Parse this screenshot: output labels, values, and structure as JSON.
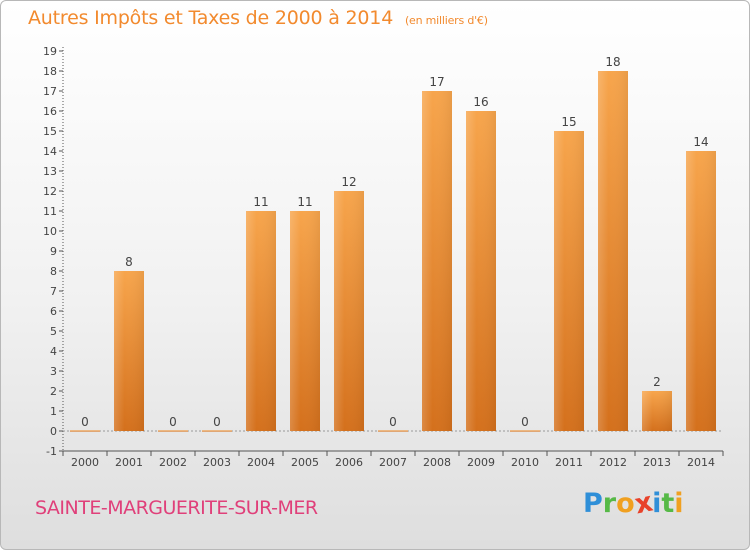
{
  "header": {
    "title": "Autres Impôts et Taxes de 2000 à 2014",
    "unit": "(en milliers d'€)"
  },
  "footer": {
    "commune": "SAINTE-MARGUERITE-SUR-MER",
    "logo_letters": [
      "P",
      "r",
      "o",
      "x",
      "i",
      "t",
      "i"
    ],
    "logo_colors": [
      "#2f8fd8",
      "#56b947",
      "#f0a020",
      "#e8422a",
      "#2f8fd8",
      "#56b947",
      "#f0a020"
    ]
  },
  "colors": {
    "bar_top": "#f7a54c",
    "bar_bottom": "#d4701c",
    "title": "#f28a2e",
    "commune": "#e0407a"
  },
  "chart_data": {
    "type": "bar",
    "title": "Autres Impôts et Taxes de 2000 à 2014",
    "subtitle": "(en milliers d'€)",
    "categories": [
      "2000",
      "2001",
      "2002",
      "2003",
      "2004",
      "2005",
      "2006",
      "2007",
      "2008",
      "2009",
      "2010",
      "2011",
      "2012",
      "2013",
      "2014"
    ],
    "values": [
      0,
      8,
      0,
      0,
      11,
      11,
      12,
      0,
      17,
      16,
      0,
      15,
      18,
      2,
      14
    ],
    "data_labels": [
      "0",
      "8",
      "0",
      "0",
      "11",
      "11",
      "12",
      "0",
      "17",
      "16",
      "0",
      "15",
      "18",
      "2",
      "14"
    ],
    "yticks": [
      -1,
      0,
      1,
      2,
      3,
      4,
      5,
      6,
      7,
      8,
      9,
      10,
      11,
      12,
      13,
      14,
      15,
      16,
      17,
      18,
      19
    ],
    "ylim": [
      -1,
      19
    ],
    "grid": false
  }
}
